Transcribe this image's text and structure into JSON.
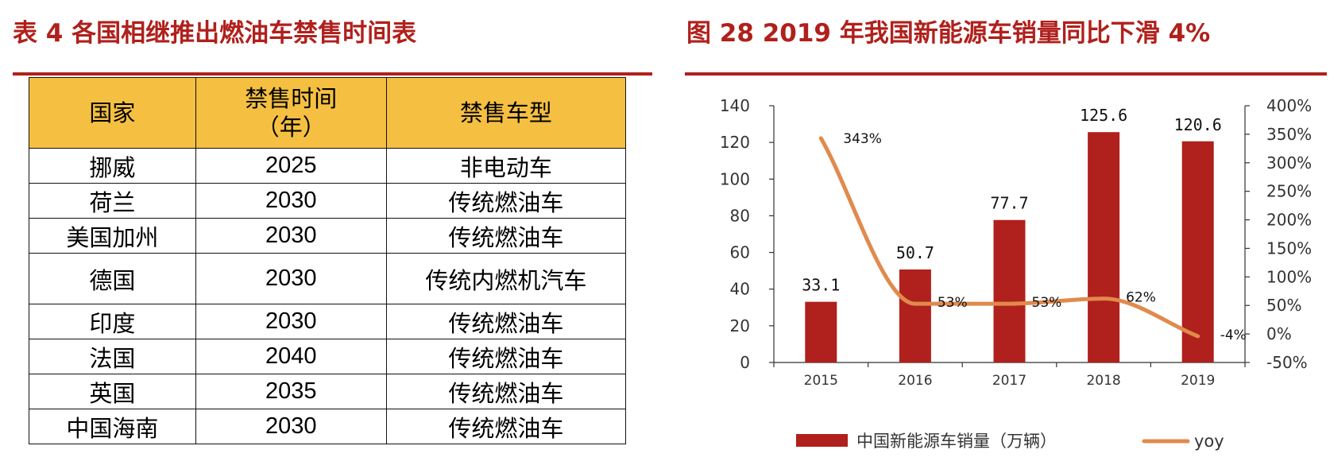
{
  "left": {
    "title": "表 4 各国相继推出燃油车禁售时间表",
    "table": {
      "headers": [
        "国家",
        "禁售时间\n（年）",
        "禁售车型"
      ],
      "rows": [
        [
          "挪威",
          "2025",
          "非电动车"
        ],
        [
          "荷兰",
          "2030",
          "传统燃油车"
        ],
        [
          "美国加州",
          "2030",
          "传统燃油车"
        ],
        [
          "德国",
          "2030",
          "传统内燃机汽车"
        ],
        [
          "印度",
          "2030",
          "传统燃油车"
        ],
        [
          "法国",
          "2040",
          "传统燃油车"
        ],
        [
          "英国",
          "2035",
          "传统燃油车"
        ],
        [
          "中国海南",
          "2030",
          "传统燃油车"
        ]
      ]
    }
  },
  "right": {
    "title": "图 28 2019 年我国新能源车销量同比下滑 4%"
  },
  "colors": {
    "brand": "#b0201c",
    "bar": "#b0201c",
    "line": "#e08a4c",
    "header_bg": "#f5bf42"
  },
  "chart_data": {
    "type": "bar",
    "categories": [
      "2015",
      "2016",
      "2017",
      "2018",
      "2019"
    ],
    "series": [
      {
        "name": "中国新能源车销量（万辆）",
        "type": "bar",
        "axis": "left",
        "values": [
          33.1,
          50.7,
          77.7,
          125.6,
          120.6
        ],
        "labels": [
          "33.1",
          "50.7",
          "77.7",
          "125.6",
          "120.6"
        ]
      },
      {
        "name": "yoy",
        "type": "line",
        "axis": "right",
        "values": [
          343,
          53,
          53,
          62,
          -4
        ],
        "labels": [
          "343%",
          "53%",
          "53%",
          "62%",
          "-4%"
        ]
      }
    ],
    "y_left": {
      "ylim": [
        0,
        140
      ],
      "ticks": [
        "0",
        "20",
        "40",
        "60",
        "80",
        "100",
        "120",
        "140"
      ]
    },
    "y_right": {
      "ylim": [
        -50,
        400
      ],
      "ticks": [
        "-50%",
        "0%",
        "50%",
        "100%",
        "150%",
        "200%",
        "250%",
        "300%",
        "350%",
        "400%"
      ]
    },
    "legend": "bottom"
  }
}
